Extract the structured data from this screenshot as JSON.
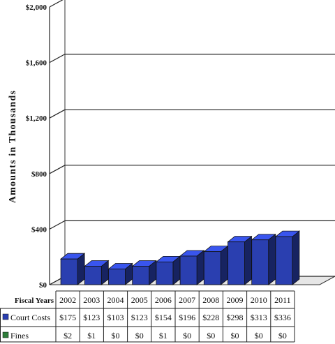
{
  "chart_data": {
    "type": "bar",
    "ylabel": "Amounts in Thousands",
    "ylim": [
      0,
      2000
    ],
    "yticks": [
      "$0",
      "$400",
      "$800",
      "$1,200",
      "$1,600",
      "$2,000"
    ],
    "ytick_values": [
      0,
      400,
      800,
      1200,
      1600,
      2000
    ],
    "grid": true,
    "categories_label": "Fiscal Years",
    "categories": [
      "2002",
      "2003",
      "2004",
      "2005",
      "2006",
      "2007",
      "2008",
      "2009",
      "2010",
      "2011"
    ],
    "series": [
      {
        "name": "Court Costs",
        "color": "#2a3fb0",
        "values": [
          175,
          123,
          103,
          123,
          154,
          196,
          228,
          298,
          313,
          336
        ],
        "labels": [
          "$175",
          "$123",
          "$103",
          "$123",
          "$154",
          "$196",
          "$228",
          "$298",
          "$313",
          "$336"
        ]
      },
      {
        "name": "Fines",
        "color": "#2e7d3a",
        "values": [
          2,
          1,
          0,
          0,
          1,
          0,
          0,
          0,
          0,
          0
        ],
        "labels": [
          "$2",
          "$1",
          "$0",
          "$0",
          "$1",
          "$0",
          "$0",
          "$0",
          "$0",
          "$0"
        ]
      }
    ]
  }
}
